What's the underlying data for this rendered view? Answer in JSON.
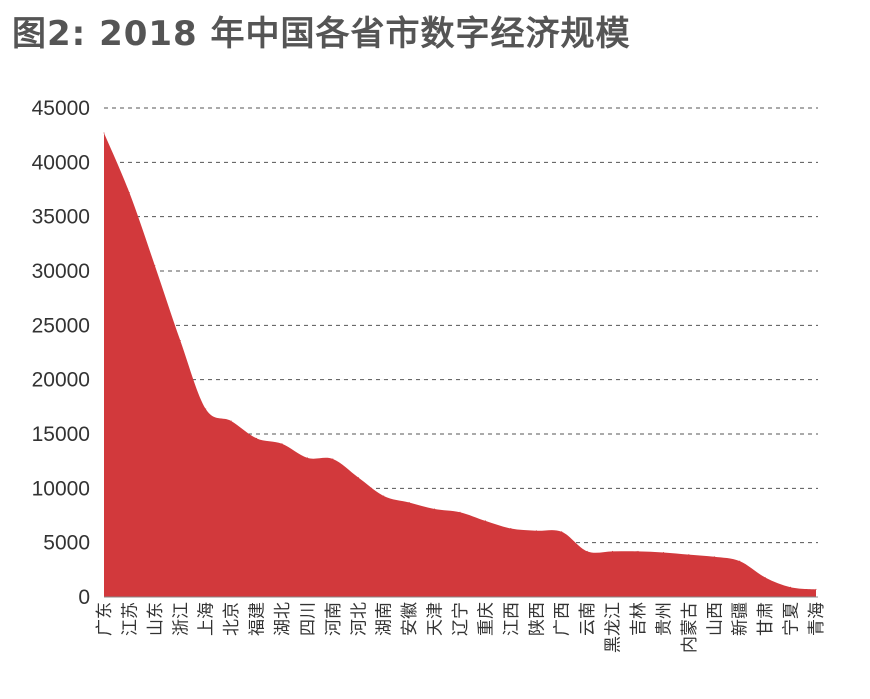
{
  "chart_data": {
    "type": "area",
    "title": "图2: 2018 年中国各省市数字经济规模",
    "xlabel": "",
    "ylabel": "",
    "ylim": [
      0,
      45000
    ],
    "yticks": [
      0,
      5000,
      10000,
      15000,
      20000,
      25000,
      30000,
      35000,
      40000,
      45000
    ],
    "grid": true,
    "color": "#d2393c",
    "categories": [
      "广东",
      "江苏",
      "山东",
      "浙江",
      "上海",
      "北京",
      "福建",
      "湖北",
      "四川",
      "河南",
      "河北",
      "湖南",
      "安徽",
      "天津",
      "辽宁",
      "重庆",
      "江西",
      "陕西",
      "广西",
      "云南",
      "黑龙江",
      "吉林",
      "贵州",
      "内蒙古",
      "山西",
      "新疆",
      "甘肃",
      "宁夏",
      "青海"
    ],
    "values": [
      42700,
      37200,
      30500,
      23600,
      17300,
      16200,
      14600,
      14100,
      12800,
      12700,
      11000,
      9300,
      8700,
      8100,
      7800,
      7000,
      6300,
      6100,
      6000,
      4200,
      4200,
      4200,
      4100,
      3900,
      3700,
      3300,
      1800,
      900,
      700
    ]
  }
}
